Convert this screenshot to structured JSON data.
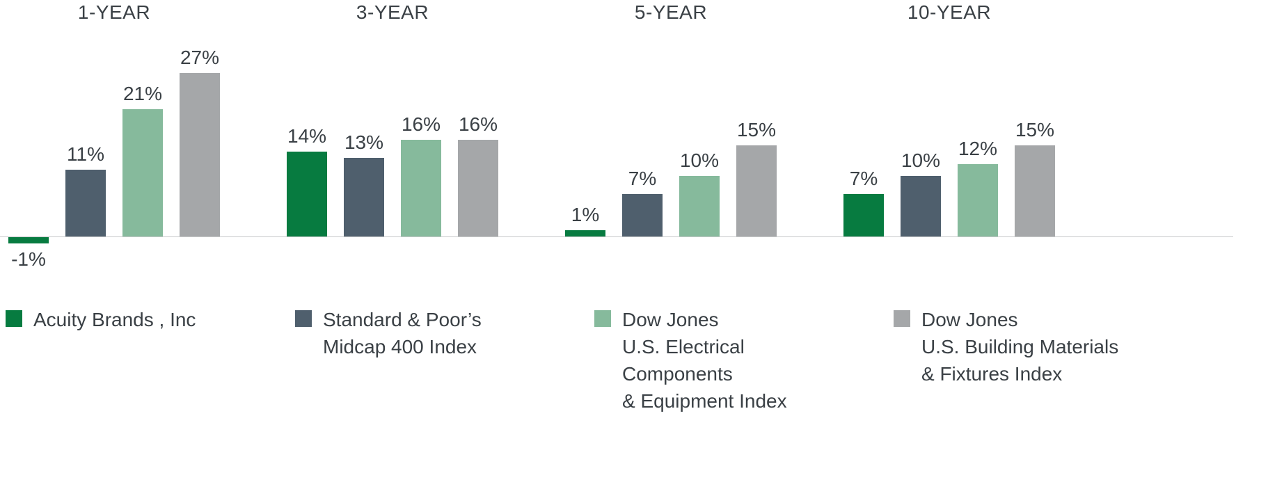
{
  "chart_data": {
    "type": "bar",
    "title": "",
    "categories": [
      "1-YEAR",
      "3-YEAR",
      "5-YEAR",
      "10-YEAR"
    ],
    "series": [
      {
        "id": "acuity",
        "name": "Acuity Brands , Inc",
        "color": "#077b40",
        "values": [
          -1,
          14,
          1,
          7
        ]
      },
      {
        "id": "sp-midcap",
        "name": "Standard & Poor’s Midcap 400 Index",
        "color": "#4f5f6d",
        "values": [
          11,
          13,
          7,
          10
        ]
      },
      {
        "id": "dj-electrical",
        "name": "Dow Jones U.S. Electrical Components & Equipment Index",
        "color": "#86ba9c",
        "values": [
          21,
          16,
          10,
          12
        ]
      },
      {
        "id": "dj-building",
        "name": "Dow Jones U.S. Building Materials & Fixtures Index",
        "color": "#a5a7a9",
        "values": [
          27,
          16,
          15,
          15
        ]
      }
    ],
    "value_suffix": "%",
    "xlabel": "",
    "ylabel": "",
    "ylim": [
      -2,
      30
    ],
    "grid": false,
    "legend_position": "bottom",
    "data_labels": [
      "-1%",
      "11%",
      "21%",
      "27%",
      "14%",
      "13%",
      "16%",
      "16%",
      "1%",
      "7%",
      "10%",
      "15%",
      "7%",
      "10%",
      "12%",
      "15%"
    ]
  },
  "legend": {
    "items": [
      {
        "label": "Acuity Brands , Inc",
        "color": "#077b40"
      },
      {
        "label": "Standard & Poor’s\nMidcap 400 Index",
        "color": "#4f5f6d"
      },
      {
        "label": "Dow Jones\nU.S. Electrical\nComponents\n& Equipment Index",
        "color": "#86ba9c"
      },
      {
        "label": "Dow Jones\nU.S. Building Materials\n& Fixtures Index",
        "color": "#a5a7a9"
      }
    ]
  }
}
